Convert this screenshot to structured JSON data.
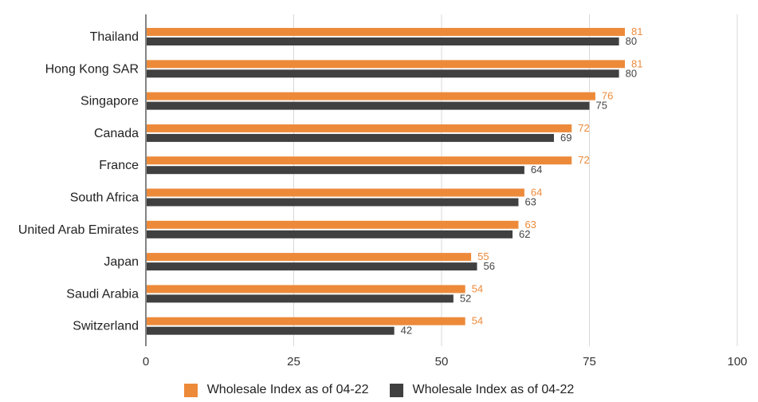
{
  "chart_data": {
    "type": "bar",
    "orientation": "horizontal",
    "categories": [
      "Thailand",
      "Hong Kong SAR",
      "Singapore",
      "Canada",
      "France",
      "South Africa",
      "United Arab Emirates",
      "Japan",
      "Saudi Arabia",
      "Switzerland"
    ],
    "series": [
      {
        "name": "Wholesale Index as of 04-22",
        "color": "#ED8A3A",
        "values": [
          81,
          81,
          76,
          72,
          72,
          64,
          63,
          55,
          54,
          54
        ]
      },
      {
        "name": "Wholesale Index as of 04-22",
        "color": "#404040",
        "values": [
          80,
          80,
          75,
          69,
          64,
          63,
          62,
          56,
          52,
          42
        ]
      }
    ],
    "xlim": [
      0,
      100
    ],
    "xticks": [
      0,
      25,
      50,
      75,
      100
    ],
    "grid": "vertical",
    "legend_position": "bottom",
    "data_labels": true
  }
}
